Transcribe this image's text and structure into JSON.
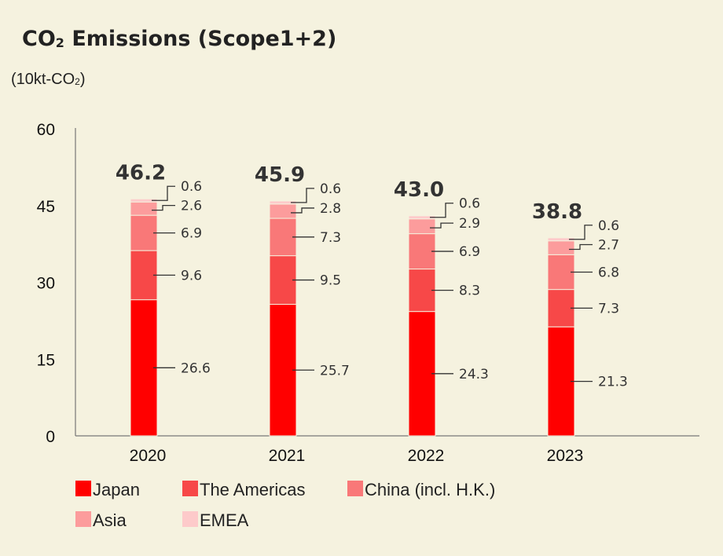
{
  "title": {
    "main": "CO",
    "subscript": "2",
    "rest": " Emissions (Scope1+2)"
  },
  "unit": {
    "prefix": "(10kt-CO",
    "subscript": "2",
    "suffix": ")"
  },
  "chart_data": {
    "type": "bar",
    "stacked": true,
    "categories": [
      "2020",
      "2021",
      "2022",
      "2023"
    ],
    "ylim": [
      0,
      60
    ],
    "yticks": [
      "0",
      "15",
      "30",
      "45",
      "60"
    ],
    "ylabel": "(10kt-CO2)",
    "grid": false,
    "legend_position": "bottom-left",
    "series": [
      {
        "name": "Japan",
        "color": "#ff0000",
        "values": [
          26.6,
          25.7,
          24.3,
          21.3
        ],
        "labels": [
          "26.6",
          "25.7",
          "24.3",
          "21.3"
        ]
      },
      {
        "name": "The Americas",
        "color": "#f74848",
        "values": [
          9.6,
          9.5,
          8.3,
          7.3
        ],
        "labels": [
          "9.6",
          "9.5",
          "8.3",
          "7.3"
        ]
      },
      {
        "name": "China (incl. H.K.)",
        "color": "#f97878",
        "values": [
          6.9,
          7.3,
          6.9,
          6.8
        ],
        "labels": [
          "6.9",
          "7.3",
          "6.9",
          "6.8"
        ]
      },
      {
        "name": "Asia",
        "color": "#fc9c9c",
        "values": [
          2.6,
          2.8,
          2.9,
          2.7
        ],
        "labels": [
          "2.6",
          "2.8",
          "2.9",
          "2.7"
        ]
      },
      {
        "name": "EMEA",
        "color": "#fdcaca",
        "values": [
          0.6,
          0.6,
          0.6,
          0.6
        ],
        "labels": [
          "0.6",
          "0.6",
          "0.6",
          "0.6"
        ]
      }
    ],
    "totals": [
      "46.2",
      "45.9",
      "43.0",
      "38.8"
    ]
  }
}
